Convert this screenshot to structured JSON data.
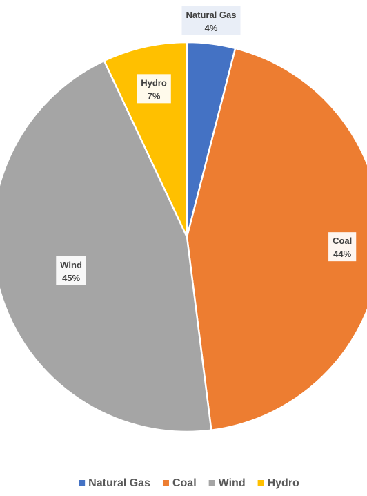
{
  "chart_data": {
    "type": "pie",
    "title": "",
    "slices": [
      {
        "label": "Natural Gas",
        "value": 4,
        "value_label": "4%",
        "color": "#4472C4"
      },
      {
        "label": "Coal",
        "value": 44,
        "value_label": "44%",
        "color": "#ED7D31"
      },
      {
        "label": "Wind",
        "value": 45,
        "value_label": "45%",
        "color": "#A5A5A5"
      },
      {
        "label": "Hydro",
        "value": 7,
        "value_label": "7%",
        "color": "#FFC000"
      }
    ],
    "start_angle": "12 o'clock",
    "direction": "clockwise",
    "data_labels": "category and percentage",
    "legend": {
      "placement": "bottom",
      "entries": [
        "Natural Gas",
        "Coal",
        "Wind",
        "Hydro"
      ]
    }
  }
}
